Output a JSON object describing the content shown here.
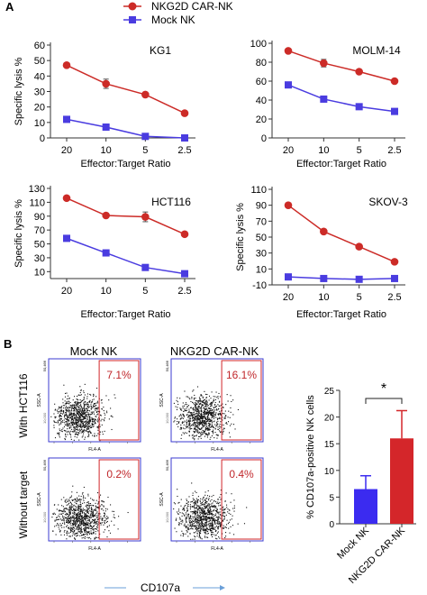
{
  "panel_a": {
    "label": "A"
  },
  "panel_b": {
    "label": "B"
  },
  "legend": [
    {
      "name": "NKG2D CAR-NK",
      "color": "#cc2b27",
      "marker": "circle"
    },
    {
      "name": "Mock NK",
      "color": "#4a3ce0",
      "marker": "square"
    }
  ],
  "chart_data": [
    {
      "type": "line",
      "title": "KG1",
      "xlabel": "Effector:Target Ratio",
      "ylabel": "Specific lysis %",
      "categories": [
        "20",
        "10",
        "5",
        "2.5"
      ],
      "ylim": [
        0,
        60
      ],
      "yticks": [
        0,
        10,
        20,
        30,
        40,
        50,
        60
      ],
      "series": [
        {
          "name": "NKG2D CAR-NK",
          "values": [
            47,
            35,
            28,
            16
          ],
          "errors": [
            0,
            3,
            0,
            0
          ]
        },
        {
          "name": "Mock NK",
          "values": [
            12,
            7,
            1,
            0
          ],
          "errors": [
            0,
            0,
            0,
            0
          ]
        }
      ]
    },
    {
      "type": "line",
      "title": "MOLM-14",
      "xlabel": "Effector:Target Ratio",
      "ylabel": "",
      "categories": [
        "20",
        "10",
        "5",
        "2.5"
      ],
      "ylim": [
        0,
        100
      ],
      "yticks": [
        0,
        20,
        40,
        60,
        80,
        100
      ],
      "series": [
        {
          "name": "NKG2D CAR-NK",
          "values": [
            92,
            79,
            70,
            60
          ],
          "errors": [
            0,
            4,
            0,
            0
          ]
        },
        {
          "name": "Mock NK",
          "values": [
            56,
            41,
            33,
            28
          ],
          "errors": [
            0,
            0,
            0,
            0
          ]
        }
      ]
    },
    {
      "type": "line",
      "title": "HCT116",
      "xlabel": "Effector:Target Ratio",
      "ylabel": "Specific lysis %",
      "categories": [
        "20",
        "10",
        "5",
        "2.5"
      ],
      "ylim": [
        0,
        130
      ],
      "yticks": [
        10,
        30,
        50,
        70,
        90,
        110,
        130
      ],
      "series": [
        {
          "name": "NKG2D CAR-NK",
          "values": [
            116,
            91,
            89,
            64
          ],
          "errors": [
            0,
            0,
            7,
            0
          ]
        },
        {
          "name": "Mock NK",
          "values": [
            58,
            37,
            16,
            7
          ],
          "errors": [
            0,
            0,
            0,
            0
          ]
        }
      ]
    },
    {
      "type": "line",
      "title": "SKOV-3",
      "xlabel": "Effector:Target Ratio",
      "ylabel": "Specific lysis %",
      "categories": [
        "20",
        "10",
        "5",
        "2.5"
      ],
      "ylim": [
        -10,
        110
      ],
      "yticks": [
        -10,
        10,
        30,
        50,
        70,
        90,
        110
      ],
      "series": [
        {
          "name": "NKG2D CAR-NK",
          "values": [
            90,
            57,
            38,
            19
          ],
          "errors": [
            0,
            0,
            0,
            0
          ]
        },
        {
          "name": "Mock NK",
          "values": [
            0,
            -2,
            -3,
            -2
          ],
          "errors": [
            0,
            0,
            0,
            0
          ]
        }
      ]
    },
    {
      "type": "bar",
      "title": "",
      "xlabel": "",
      "ylabel": "% CD107a-positive NK cells",
      "categories": [
        "Mock NK",
        "NKG2D CAR-NK"
      ],
      "values": [
        6.5,
        16
      ],
      "errors": [
        2.5,
        5.2
      ],
      "colors": [
        "#3b2bf0",
        "#d4262a"
      ],
      "ylim": [
        0,
        25
      ],
      "yticks": [
        0,
        5,
        10,
        15,
        20,
        25
      ],
      "significance": "*"
    }
  ],
  "flow": {
    "col_titles": [
      "Mock NK",
      "NKG2D CAR-NK"
    ],
    "row_titles": [
      "With HCT116",
      "Without target"
    ],
    "percents": [
      [
        "7.1%",
        "16.1%"
      ],
      [
        "0.2%",
        "0.4%"
      ]
    ],
    "x_axis": "FL4-A",
    "y_axis": "SSC-A",
    "bottom_label": "CD107a",
    "top_tick": "50,466",
    "tick_10k": "10,000"
  }
}
